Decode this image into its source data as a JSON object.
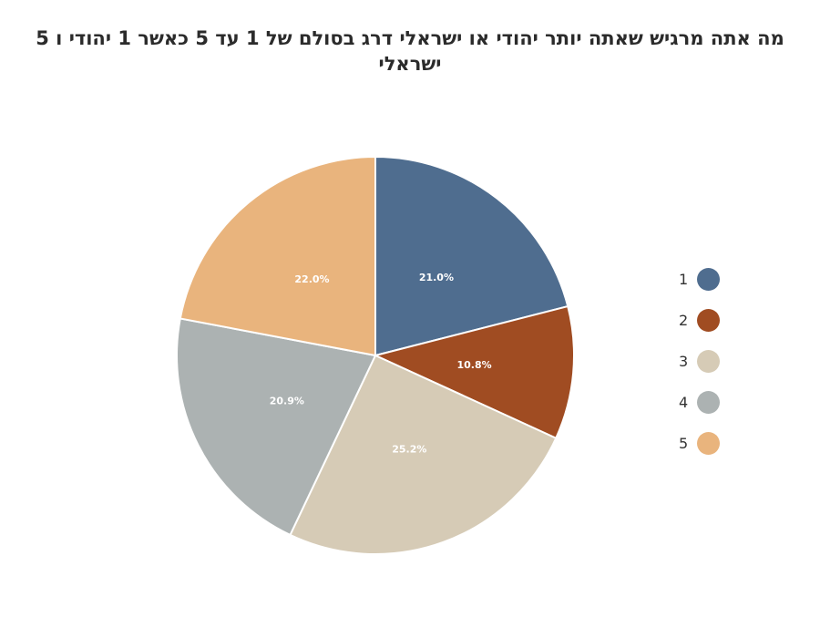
{
  "chart_data": {
    "type": "pie",
    "title": "מה אתה מרגיש שאתה יותר יהודי או ישראלי דרג בסולם של 1 עד 5 כאשר 1 יהודי ו 5 ישראלי",
    "categories": [
      "1",
      "2",
      "3",
      "4",
      "5"
    ],
    "values": [
      21.0,
      10.8,
      25.2,
      20.9,
      22.0
    ],
    "labels": [
      "21.0%",
      "10.8%",
      "25.2%",
      "20.9%",
      "22.0%"
    ],
    "colors": [
      "#4f6d8f",
      "#a04c22",
      "#d6cbb6",
      "#acb2b2",
      "#e9b47d"
    ],
    "legend_position": "right",
    "start_angle": "top",
    "direction": "clockwise"
  }
}
